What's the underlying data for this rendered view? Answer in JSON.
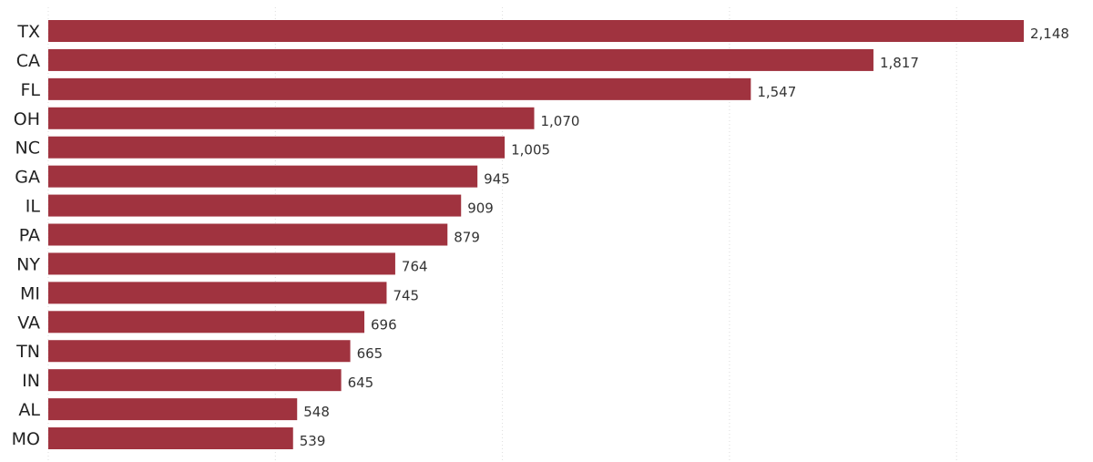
{
  "chart_data": {
    "type": "bar",
    "orientation": "horizontal",
    "categories": [
      "TX",
      "CA",
      "FL",
      "OH",
      "NC",
      "GA",
      "IL",
      "PA",
      "NY",
      "MI",
      "VA",
      "TN",
      "IN",
      "AL",
      "MO"
    ],
    "values": [
      2148,
      1817,
      1547,
      1070,
      1005,
      945,
      909,
      879,
      764,
      745,
      696,
      665,
      645,
      548,
      539
    ],
    "value_labels": [
      "2,148",
      "1,817",
      "1,547",
      "1,070",
      "1,005",
      "945",
      "909",
      "879",
      "764",
      "745",
      "696",
      "665",
      "645",
      "548",
      "539"
    ],
    "title": "",
    "xlabel": "",
    "ylabel": "",
    "xlim": [
      0,
      2148
    ],
    "grid": "vertical dotted every 500",
    "bar_color": "#A0333F",
    "legend": "none"
  }
}
